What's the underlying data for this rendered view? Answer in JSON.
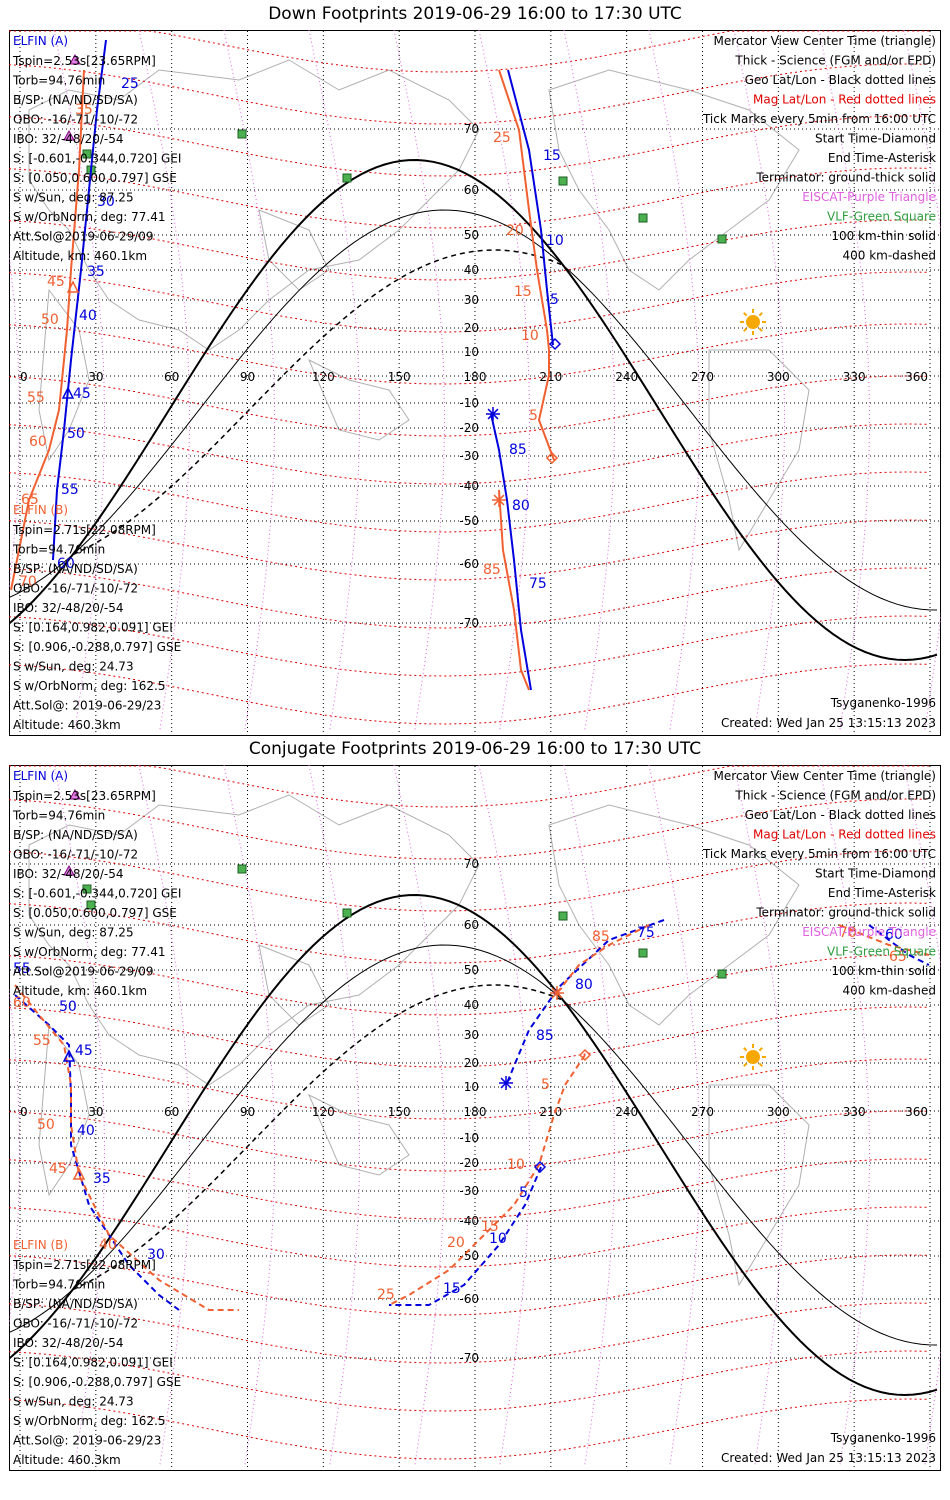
{
  "panels": [
    {
      "id": "down",
      "title": "Down Footprints 2019-06-29 16:00 to 17:30 UTC",
      "latLabels": [
        "70",
        "60",
        "50",
        "40",
        "30",
        "20",
        "10",
        "-10",
        "-20",
        "-30",
        "-40",
        "-50",
        "-60",
        "-70"
      ],
      "lonLabels": [
        "0",
        "30",
        "60",
        "90",
        "120",
        "150",
        "180",
        "210",
        "240",
        "270",
        "300",
        "330",
        "360"
      ],
      "elfinA": {
        "name": "ELFIN (A)",
        "lines": [
          "Tspin=2.53s[23.65RPM]",
          "Torb=94.76min",
          "B/SP: (NA/ND/SD/SA)",
          "OBO: -16/-71/-10/-72",
          "IBO: 32/-48/20/-54",
          "S: [-0.601,-0.344,0.720] GEI",
          "S: [0.050,0.600,0.797] GSE",
          "S w/Sun, deg: 87.25",
          "S w/OrbNorm, deg: 77.41",
          "Att.Sol@2019-06-29/09",
          "Altitude, km: 460.1km"
        ]
      },
      "elfinB": {
        "name": "ELFIN (B)",
        "lines": [
          "Tspin=2.71s[22.08RPM]",
          "Torb=94.76min",
          "B/SP: (NA/ND/SD/SA)",
          "OBO: -16/-71/-10/-72",
          "IBO: 32/-48/20/-54",
          "S: [0.164,0.982,0.091] GEI",
          "S: [0.906,-0.288,0.797] GSE",
          "S w/Sun, deg: 24.73",
          "S w/OrbNorm, deg: 162.5",
          "Att.Sol@: 2019-06-29/23",
          "Altitude: 460.3km"
        ]
      },
      "legend": {
        "black": [
          "Mercator View Center Time (triangle)",
          "Thick - Science (FGM and/or EPD)",
          "Geo Lat/Lon - Black dotted lines"
        ],
        "red": "Mag Lat/Lon - Red dotted lines",
        "black2": [
          "Tick Marks every 5min from 16:00 UTC",
          "Start Time-Diamond",
          "End Time-Asterisk",
          "Terminator: ground-thick solid"
        ],
        "purple": "EISCAT-Purple Triangle",
        "green": "VLF-Green Square",
        "black3": [
          "100 km-thin solid",
          "400 km-dashed"
        ]
      },
      "footer": {
        "model": "Tsyganenko-1996",
        "created": "Created: Wed Jan 25 13:15:13 2023"
      },
      "trackA_labels": [
        "25",
        "15",
        "10",
        "5",
        "35",
        "40",
        "45",
        "50",
        "55",
        "60",
        "85",
        "80",
        "75",
        "30"
      ],
      "trackB_labels": [
        "35",
        "25",
        "20",
        "15",
        "10",
        "5",
        "45",
        "50",
        "55",
        "60",
        "65",
        "70",
        "85"
      ]
    },
    {
      "id": "conj",
      "title": "Conjugate Footprints 2019-06-29 16:00 to 17:30 UTC",
      "latLabels": [
        "70",
        "60",
        "50",
        "40",
        "30",
        "20",
        "10",
        "-10",
        "-20",
        "-30",
        "-40",
        "-50",
        "-60",
        "-70"
      ],
      "lonLabels": [
        "0",
        "30",
        "60",
        "90",
        "120",
        "150",
        "180",
        "210",
        "240",
        "270",
        "300",
        "330",
        "360"
      ],
      "elfinA": {
        "name": "ELFIN (A)",
        "lines": [
          "Tspin=2.53s[23.65RPM]",
          "Torb=94.76min",
          "B/SP: (NA/ND/SD/SA)",
          "OBO: -16/-71/-10/-72",
          "IBO: 32/-48/20/-54",
          "S: [-0.601,-0.344,0.720] GEI",
          "S: [0.050,0.600,0.797] GSE",
          "S w/Sun, deg: 87.25",
          "S w/OrbNorm, deg: 77.41",
          "Att.Sol@2019-06-29/09",
          "Altitude, km: 460.1km"
        ]
      },
      "elfinB": {
        "name": "ELFIN (B)",
        "lines": [
          "Tspin=2.71s[22.08RPM]",
          "Torb=94.76min",
          "B/SP: (NA/ND/SD/SA)",
          "OBO: -16/-71/-10/-72",
          "IBO: 32/-48/20/-54",
          "S: [0.164,0.982,0.091] GEI",
          "S: [0.906,-0.288,0.797] GSE",
          "S w/Sun, deg: 24.73",
          "S w/OrbNorm, deg: 162.5",
          "Att.Sol@: 2019-06-29/23",
          "Altitude: 460.3km"
        ]
      },
      "legend": {
        "black": [
          "Mercator View Center Time (triangle)",
          "Thick - Science (FGM and/or EPD)",
          "Geo Lat/Lon - Black dotted lines"
        ],
        "red": "Mag Lat/Lon - Red dotted lines",
        "black2": [
          "Tick Marks every 5min from 16:00 UTC",
          "Start Time-Diamond",
          "End Time-Asterisk",
          "Terminator: ground-thick solid"
        ],
        "purple": "EISCAT-Purple Triangle",
        "green": "VLF-Green Square",
        "black3": [
          "100 km-thin solid",
          "400 km-dashed"
        ]
      },
      "footer": {
        "model": "Tsyganenko-1996",
        "created": "Created: Wed Jan 25 13:15:13 2023"
      },
      "trackA_labels": [
        "75",
        "80",
        "85",
        "50",
        "45",
        "40",
        "35",
        "30",
        "10",
        "15",
        "5",
        "60",
        "55"
      ],
      "trackB_labels": [
        "85",
        "70",
        "65",
        "60",
        "55",
        "50",
        "45",
        "40",
        "25",
        "20",
        "15",
        "10",
        "5"
      ]
    }
  ]
}
